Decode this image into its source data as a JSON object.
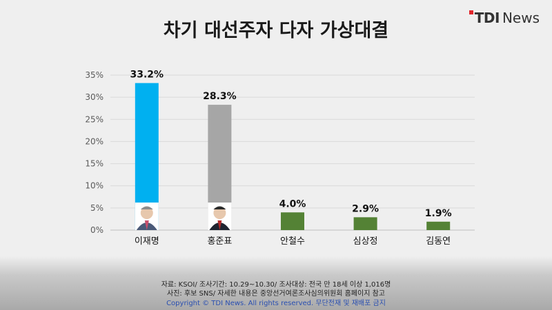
{
  "header": {
    "logo_tdi": "TDI",
    "logo_news": "News"
  },
  "chart_data": {
    "type": "bar",
    "title": "차기 대선주자 다자 가상대결",
    "categories": [
      "이재명",
      "홍준표",
      "안철수",
      "심상정",
      "김동연"
    ],
    "values": [
      33.2,
      28.3,
      4.0,
      2.9,
      1.9
    ],
    "value_labels": [
      "33.2%",
      "28.3%",
      "4.0%",
      "2.9%",
      "1.9%"
    ],
    "bar_colors": [
      "#00b0f0",
      "#a6a6a6",
      "#548235",
      "#548235",
      "#548235"
    ],
    "photo_bars": [
      0,
      1
    ],
    "ylim": [
      0,
      35
    ],
    "yticks": [
      0,
      5,
      10,
      15,
      20,
      25,
      30,
      35
    ],
    "ytick_labels": [
      "0%",
      "5%",
      "10%",
      "15%",
      "20%",
      "25%",
      "30%",
      "35%"
    ],
    "xlabel": "",
    "ylabel": "",
    "grid": true
  },
  "footer": {
    "source_line1": "자료: KSOI/ 조사기간: 10.29~10.30/ 조사대상: 전국 만 18세 이상 1,016명",
    "source_line2": "사진: 후보 SNS/ 자세한 내용은 중앙선거여론조사심의위원회 홈페이지 참고",
    "copyright": "Copyright © TDI News. All rights reserved. 무단전재 및 재배포 금지"
  }
}
